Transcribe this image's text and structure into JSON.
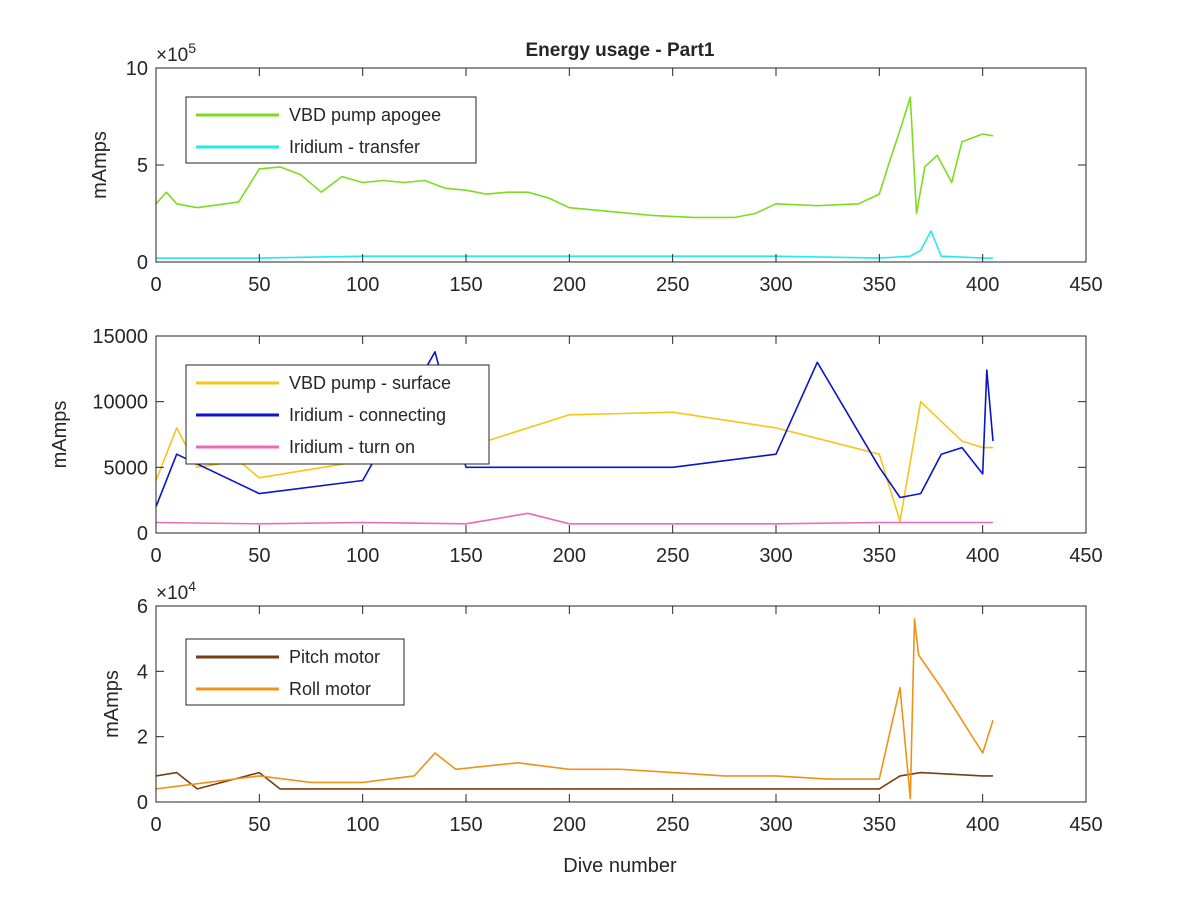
{
  "figure": {
    "title": "Energy usage - Part1",
    "xlabel": "Dive number"
  },
  "colors": {
    "vbd_apogee": "#7ddc1f",
    "iridium_transfer": "#25e8f0",
    "vbd_surface": "#f5c518",
    "iridium_connecting": "#0a14c8",
    "iridium_turn_on": "#ee6ab8",
    "pitch_motor": "#7a3d12",
    "roll_motor": "#ee9218"
  },
  "chart_data": [
    {
      "type": "line",
      "title": "Energy usage - Part1",
      "xlabel": "",
      "ylabel": "mAmps",
      "xlim": [
        0,
        450
      ],
      "ylim": [
        0,
        10
      ],
      "y_multiplier": "×10^5",
      "y_exponent_label": {
        "base": "×10",
        "exp": "5"
      },
      "xticks": [
        "0",
        "50",
        "100",
        "150",
        "200",
        "250",
        "300",
        "350",
        "400",
        "450"
      ],
      "yticks": [
        "0",
        "5",
        "10"
      ],
      "legend_position": "top-left",
      "series": [
        {
          "name": "VBD pump apogee",
          "color_key": "vbd_apogee",
          "x": [
            0,
            5,
            10,
            20,
            40,
            50,
            60,
            70,
            80,
            90,
            100,
            110,
            120,
            130,
            140,
            150,
            160,
            170,
            180,
            190,
            200,
            220,
            240,
            260,
            280,
            290,
            300,
            320,
            340,
            350,
            355,
            360,
            365,
            368,
            372,
            378,
            385,
            390,
            400,
            405
          ],
          "y": [
            3.0,
            3.6,
            3.0,
            2.8,
            3.1,
            4.8,
            4.9,
            4.5,
            3.6,
            4.4,
            4.1,
            4.2,
            4.1,
            4.2,
            3.8,
            3.7,
            3.5,
            3.6,
            3.6,
            3.3,
            2.8,
            2.6,
            2.4,
            2.3,
            2.3,
            2.5,
            3.0,
            2.9,
            3.0,
            3.5,
            5.2,
            6.8,
            8.5,
            2.5,
            4.9,
            5.5,
            4.1,
            6.2,
            6.6,
            6.5
          ]
        },
        {
          "name": "Iridium - transfer",
          "color_key": "iridium_transfer",
          "x": [
            0,
            20,
            50,
            100,
            150,
            200,
            250,
            300,
            350,
            365,
            370,
            375,
            380,
            400,
            405
          ],
          "y": [
            0.2,
            0.2,
            0.2,
            0.3,
            0.3,
            0.3,
            0.3,
            0.3,
            0.2,
            0.3,
            0.6,
            1.6,
            0.3,
            0.2,
            0.2
          ]
        }
      ]
    },
    {
      "type": "line",
      "xlabel": "",
      "ylabel": "mAmps",
      "xlim": [
        0,
        450
      ],
      "ylim": [
        0,
        15000
      ],
      "xticks": [
        "0",
        "50",
        "100",
        "150",
        "200",
        "250",
        "300",
        "350",
        "400",
        "450"
      ],
      "yticks": [
        "0",
        "5000",
        "10000",
        "15000"
      ],
      "legend_position": "top-left",
      "series": [
        {
          "name": "VBD pump - surface",
          "color_key": "vbd_surface",
          "x": [
            0,
            10,
            20,
            40,
            50,
            100,
            150,
            200,
            250,
            300,
            350,
            360,
            370,
            380,
            390,
            400,
            405
          ],
          "y": [
            4000,
            8000,
            5000,
            5500,
            4200,
            5500,
            6500,
            9000,
            9200,
            8000,
            6000,
            900,
            10000,
            8500,
            7000,
            6500,
            6500
          ]
        },
        {
          "name": "Iridium - connecting",
          "color_key": "iridium_connecting",
          "x": [
            0,
            10,
            50,
            100,
            135,
            150,
            200,
            250,
            300,
            320,
            350,
            360,
            370,
            380,
            390,
            400,
            402,
            405
          ],
          "y": [
            2000,
            6000,
            3000,
            4000,
            13800,
            5000,
            5000,
            5000,
            6000,
            13000,
            5000,
            2700,
            3000,
            6000,
            6500,
            4500,
            12400,
            7000
          ]
        },
        {
          "name": "Iridium - turn on",
          "color_key": "iridium_turn_on",
          "x": [
            0,
            50,
            100,
            150,
            180,
            200,
            250,
            300,
            350,
            360,
            400,
            405
          ],
          "y": [
            800,
            700,
            800,
            700,
            1500,
            700,
            700,
            700,
            800,
            800,
            800,
            800
          ]
        }
      ]
    },
    {
      "type": "line",
      "xlabel": "Dive number",
      "ylabel": "mAmps",
      "xlim": [
        0,
        450
      ],
      "ylim": [
        0,
        6
      ],
      "y_multiplier": "×10^4",
      "y_exponent_label": {
        "base": "×10",
        "exp": "4"
      },
      "xticks": [
        "0",
        "50",
        "100",
        "150",
        "200",
        "250",
        "300",
        "350",
        "400",
        "450"
      ],
      "yticks": [
        "0",
        "2",
        "4",
        "6"
      ],
      "legend_position": "top-left",
      "series": [
        {
          "name": "Pitch motor",
          "color_key": "pitch_motor",
          "x": [
            0,
            10,
            20,
            50,
            60,
            100,
            150,
            200,
            250,
            300,
            350,
            360,
            370,
            400,
            405
          ],
          "y": [
            0.8,
            0.9,
            0.4,
            0.9,
            0.4,
            0.4,
            0.4,
            0.4,
            0.4,
            0.4,
            0.4,
            0.8,
            0.9,
            0.8,
            0.8
          ]
        },
        {
          "name": "Roll motor",
          "color_key": "roll_motor",
          "x": [
            0,
            25,
            50,
            75,
            100,
            125,
            135,
            145,
            160,
            175,
            200,
            225,
            250,
            275,
            300,
            325,
            350,
            360,
            365,
            367,
            369,
            380,
            390,
            400,
            405
          ],
          "y": [
            0.4,
            0.6,
            0.8,
            0.6,
            0.6,
            0.8,
            1.5,
            1.0,
            1.1,
            1.2,
            1.0,
            1.0,
            0.9,
            0.8,
            0.8,
            0.7,
            0.7,
            3.5,
            0.1,
            5.6,
            4.5,
            3.5,
            2.5,
            1.5,
            2.5
          ]
        }
      ]
    }
  ]
}
